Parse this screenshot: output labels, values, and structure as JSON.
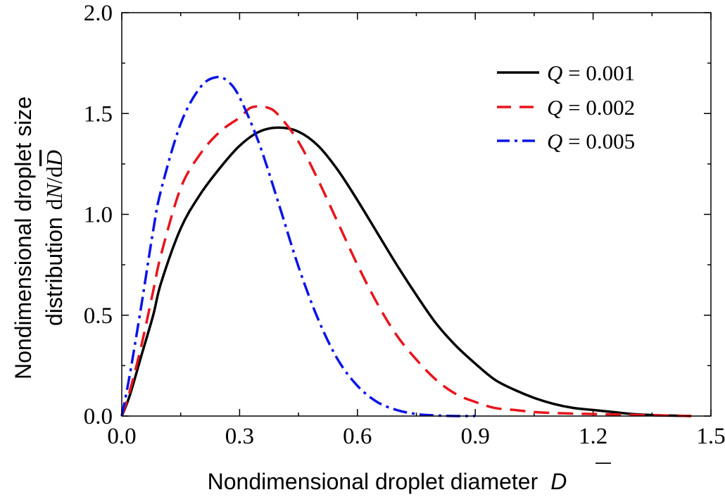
{
  "chart_data": {
    "type": "line",
    "title": "",
    "xlabel": {
      "text": "Nondimensional droplet diameter",
      "symbol": "D"
    },
    "ylabel": {
      "line1": "Nondimensional droplet size",
      "line2": "distribution",
      "symbol_prefix": "d",
      "symbol_N": "N",
      "symbol_mid": "/d",
      "symbol_D": "D"
    },
    "xlim": [
      0,
      1.5
    ],
    "ylim": [
      0,
      2.0
    ],
    "xticks": [
      "0.0",
      "0.3",
      "0.6",
      "0.9",
      "1.2",
      "1.5"
    ],
    "yticks": [
      "0.0",
      "0.5",
      "1.0",
      "1.5",
      "2.0"
    ],
    "grid": false,
    "legend_position": "top-right",
    "series": [
      {
        "name": "Q = 0.001",
        "legend_var": "Q",
        "legend_value": " = 0.001",
        "color": "#000000",
        "style": "solid",
        "x": [
          0,
          0.02,
          0.05,
          0.08,
          0.1,
          0.15,
          0.2,
          0.25,
          0.3,
          0.35,
          0.4,
          0.45,
          0.5,
          0.55,
          0.6,
          0.65,
          0.7,
          0.75,
          0.8,
          0.85,
          0.9,
          0.95,
          1.0,
          1.05,
          1.1,
          1.15,
          1.2,
          1.25,
          1.3,
          1.35,
          1.4,
          1.45
        ],
        "y": [
          0,
          0.1,
          0.3,
          0.5,
          0.66,
          0.93,
          1.1,
          1.23,
          1.34,
          1.41,
          1.43,
          1.41,
          1.34,
          1.22,
          1.07,
          0.91,
          0.75,
          0.6,
          0.46,
          0.35,
          0.26,
          0.18,
          0.13,
          0.09,
          0.06,
          0.04,
          0.03,
          0.02,
          0.01,
          0.005,
          0.002,
          0.0
        ]
      },
      {
        "name": "Q = 0.002",
        "legend_var": "Q",
        "legend_value": " = 0.002",
        "color": "#e8141c",
        "style": "dashed",
        "x": [
          0,
          0.02,
          0.05,
          0.08,
          0.1,
          0.15,
          0.2,
          0.25,
          0.3,
          0.33,
          0.37,
          0.4,
          0.45,
          0.5,
          0.55,
          0.6,
          0.65,
          0.7,
          0.75,
          0.8,
          0.85,
          0.9,
          0.95,
          1.0,
          1.05,
          1.1,
          1.15,
          1.2,
          1.25,
          1.3,
          1.35,
          1.4,
          1.45
        ],
        "y": [
          0,
          0.12,
          0.35,
          0.62,
          0.8,
          1.13,
          1.3,
          1.41,
          1.48,
          1.53,
          1.53,
          1.49,
          1.36,
          1.17,
          0.96,
          0.75,
          0.56,
          0.4,
          0.28,
          0.18,
          0.11,
          0.07,
          0.04,
          0.03,
          0.02,
          0.015,
          0.012,
          0.01,
          0.008,
          0.006,
          0.004,
          0.002,
          0.0
        ]
      },
      {
        "name": "Q = 0.005",
        "legend_var": "Q",
        "legend_value": " = 0.005",
        "color": "#0a14e6",
        "style": "dashdot",
        "x": [
          0,
          0.02,
          0.05,
          0.08,
          0.1,
          0.15,
          0.2,
          0.24,
          0.27,
          0.3,
          0.35,
          0.4,
          0.45,
          0.5,
          0.55,
          0.6,
          0.65,
          0.7,
          0.75,
          0.8,
          0.85,
          0.9
        ],
        "y": [
          0,
          0.2,
          0.55,
          0.92,
          1.12,
          1.45,
          1.63,
          1.68,
          1.66,
          1.58,
          1.35,
          1.05,
          0.74,
          0.48,
          0.28,
          0.15,
          0.07,
          0.03,
          0.01,
          0.003,
          0.0,
          0.0
        ]
      }
    ]
  }
}
